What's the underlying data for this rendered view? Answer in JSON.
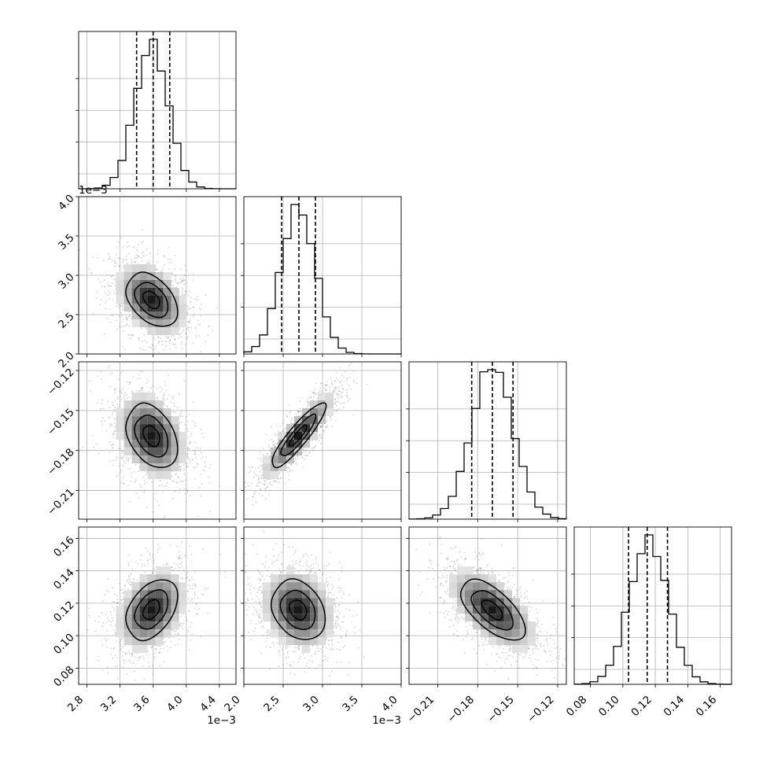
{
  "chart_data": {
    "type": "corner",
    "grid": true,
    "params": [
      {
        "index": 0,
        "range": [
          0.0027,
          0.0046
        ],
        "ticks": [
          0.0028,
          0.0032,
          0.0036,
          0.004,
          0.0044
        ],
        "tick_labels": [
          "2.8",
          "3.2",
          "3.6",
          "4.0",
          "4.4"
        ],
        "offset_label": "1e−3",
        "quantiles": [
          0.0034,
          0.0036,
          0.0038
        ],
        "peak": 0.00358,
        "sd": 0.0002
      },
      {
        "index": 1,
        "range": [
          0.002,
          0.004
        ],
        "ticks": [
          0.002,
          0.0025,
          0.003,
          0.0035,
          0.004
        ],
        "tick_labels": [
          "2.0",
          "2.5",
          "3.0",
          "3.5",
          "4.0"
        ],
        "offset_label": "1e−3",
        "quantiles": [
          0.00248,
          0.0027,
          0.00291
        ],
        "peak": 0.00269,
        "sd": 0.00022
      },
      {
        "index": 2,
        "range": [
          -0.2315,
          -0.1135
        ],
        "ticks": [
          -0.21,
          -0.18,
          -0.15,
          -0.12
        ],
        "tick_labels": [
          "−0.21",
          "−0.18",
          "−0.15",
          "−0.12"
        ],
        "offset_label": "",
        "quantiles": [
          -0.1845,
          -0.169,
          -0.1535
        ],
        "peak": -0.169,
        "sd": 0.0155
      },
      {
        "index": 3,
        "range": [
          0.07,
          0.167
        ],
        "ticks": [
          0.08,
          0.1,
          0.12,
          0.14,
          0.16
        ],
        "tick_labels": [
          "0.08",
          "0.10",
          "0.12",
          "0.14",
          "0.16"
        ],
        "offset_label": "",
        "quantiles": [
          0.1035,
          0.115,
          0.1275
        ],
        "peak": 0.116,
        "sd": 0.012
      }
    ],
    "correlations": [
      {
        "pair": [
          0,
          1
        ],
        "rho": -0.35
      },
      {
        "pair": [
          0,
          2
        ],
        "rho": -0.3
      },
      {
        "pair": [
          1,
          2
        ],
        "rho": 0.88
      },
      {
        "pair": [
          0,
          3
        ],
        "rho": 0.35
      },
      {
        "pair": [
          1,
          3
        ],
        "rho": -0.2
      },
      {
        "pair": [
          2,
          3
        ],
        "rho": -0.6
      }
    ],
    "row0_offset_label": "1e−3",
    "histogram_style": "step, black",
    "quantile_lines": "dashed black at 16th, 50th, 84th percentiles",
    "contour_levels": 3,
    "scatter_color": "#808080"
  }
}
